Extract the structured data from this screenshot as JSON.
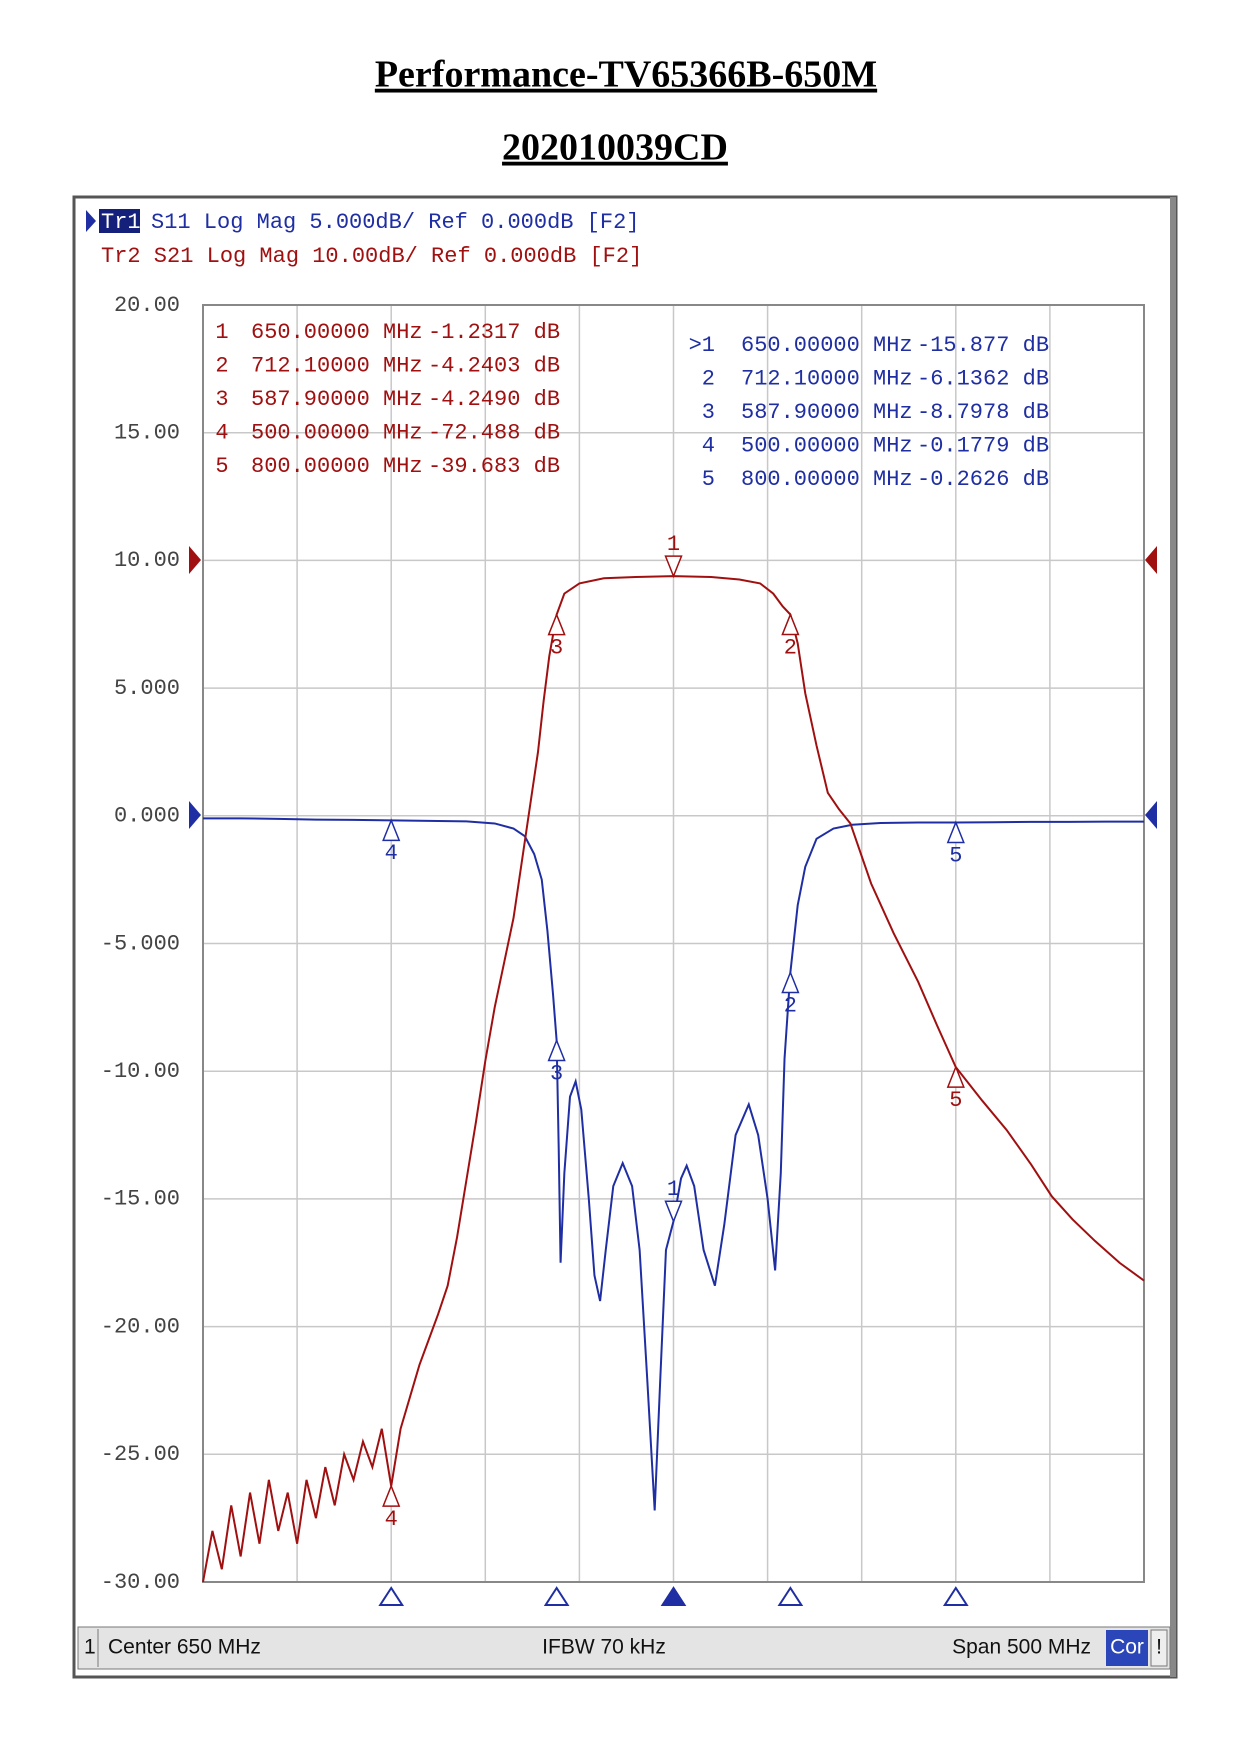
{
  "title": "Performance-TV65366B-650M",
  "subtitle": "202010039CD",
  "chart_data": {
    "type": "line",
    "tr1_label": "Tr1",
    "tr1_text": "S11 Log Mag 5.000dB/ Ref 0.000dB [F2]",
    "tr2_text": "Tr2 S21 Log Mag 10.00dB/ Ref 0.000dB [F2]",
    "xlim": [
      400,
      900
    ],
    "ylim": [
      -30,
      20
    ],
    "y2lim": [
      -80,
      20
    ],
    "grid": true,
    "yticks": [
      {
        "value": 20,
        "label": "20.00"
      },
      {
        "value": 15,
        "label": "15.00"
      },
      {
        "value": 10,
        "label": "10.00"
      },
      {
        "value": 5,
        "label": "5.000"
      },
      {
        "value": 0,
        "label": "0.000"
      },
      {
        "value": -5,
        "label": "-5.000"
      },
      {
        "value": -10,
        "label": "-10.00"
      },
      {
        "value": -15,
        "label": "-15.00"
      },
      {
        "value": -20,
        "label": "-20.00"
      },
      {
        "value": -25,
        "label": "-25.00"
      },
      {
        "value": -30,
        "label": "-30.00"
      }
    ],
    "series": [
      {
        "color": "#1f2fa3",
        "x": [
          400,
          420,
          440,
          460,
          480,
          500,
          520,
          540,
          555,
          565,
          571,
          576,
          580,
          583,
          586,
          587.9,
          589,
          590,
          592,
          595,
          598,
          601,
          605,
          608,
          611,
          614,
          618,
          623,
          628,
          632,
          636,
          640,
          643,
          646,
          650,
          654,
          657,
          661,
          666,
          672,
          677,
          683,
          690,
          695,
          700,
          704,
          707,
          709,
          712.1,
          716,
          720,
          726,
          735,
          745,
          760,
          780,
          800,
          820,
          840,
          860,
          880,
          900
        ],
        "values": [
          -0.1,
          -0.1,
          -0.12,
          -0.15,
          -0.16,
          -0.18,
          -0.2,
          -0.22,
          -0.3,
          -0.5,
          -0.8,
          -1.5,
          -2.5,
          -4.5,
          -7,
          -8.8,
          -13,
          -17.5,
          -14,
          -11,
          -10.4,
          -11.5,
          -15,
          -18,
          -19,
          -17,
          -14.5,
          -13.6,
          -14.5,
          -17,
          -22,
          -27.2,
          -22,
          -17,
          -15.877,
          -14.2,
          -13.7,
          -14.5,
          -17,
          -18.4,
          -16,
          -12.5,
          -11.3,
          -12.5,
          -15,
          -17.8,
          -14,
          -9.5,
          -6.1362,
          -3.5,
          -2,
          -0.9,
          -0.5,
          -0.35,
          -0.28,
          -0.26,
          -0.2626,
          -0.25,
          -0.24,
          -0.24,
          -0.23,
          -0.23
        ],
        "markers": [
          {
            "id": "1",
            "list_id": ">1",
            "freq": 650,
            "freq_label": "650.00000 MHz",
            "value": -15.877,
            "value_label": "-15.877 dB",
            "active": true
          },
          {
            "id": "2",
            "list_id": "2",
            "freq": 712.1,
            "freq_label": "712.10000 MHz",
            "value": -6.1362,
            "value_label": "-6.1362 dB"
          },
          {
            "id": "3",
            "list_id": "3",
            "freq": 587.9,
            "freq_label": "587.90000 MHz",
            "value": -8.7978,
            "value_label": "-8.7978 dB"
          },
          {
            "id": "4",
            "list_id": "4",
            "freq": 500,
            "freq_label": "500.00000 MHz",
            "value": -0.1779,
            "value_label": "-0.1779 dB"
          },
          {
            "id": "5",
            "list_id": "5",
            "freq": 800,
            "freq_label": "800.00000 MHz",
            "value": -0.2626,
            "value_label": "-0.2626 dB"
          }
        ]
      },
      {
        "color": "#a01010",
        "axis": "y2",
        "x": [
          400,
          405,
          410,
          415,
          420,
          425,
          430,
          435,
          440,
          445,
          450,
          455,
          460,
          465,
          470,
          475,
          480,
          485,
          490,
          495,
          500,
          505,
          510,
          515,
          520,
          525,
          530,
          535,
          540,
          545,
          550,
          555,
          560,
          565,
          570,
          575,
          578,
          581,
          584,
          587.9,
          592,
          600,
          613,
          630,
          650,
          670,
          685,
          696,
          703,
          708,
          712.1,
          716,
          720,
          726,
          732,
          738,
          744,
          755,
          767,
          780,
          790,
          800,
          814,
          827,
          840,
          851,
          862,
          874,
          887,
          900
        ],
        "values": [
          -80,
          -76,
          -79,
          -74,
          -78,
          -73,
          -77,
          -72,
          -76,
          -73,
          -77,
          -72,
          -75,
          -71,
          -74,
          -70,
          -72,
          -69,
          -71,
          -68,
          -72.488,
          -68,
          -65.5,
          -63,
          -61,
          -59,
          -56.8,
          -53,
          -48.5,
          -44,
          -39.2,
          -35,
          -31.5,
          -28,
          -23,
          -18,
          -15,
          -11,
          -7.5,
          -4.249,
          -2.6,
          -1.8,
          -1.4,
          -1.3,
          -1.2317,
          -1.3,
          -1.5,
          -1.8,
          -2.6,
          -3.6,
          -4.2403,
          -6.5,
          -10.4,
          -14.5,
          -18.2,
          -19.5,
          -20.6,
          -25.3,
          -29.2,
          -33,
          -36.4,
          -39.683,
          -42.3,
          -44.6,
          -47.3,
          -49.8,
          -51.6,
          -53.3,
          -55,
          -56.4
        ],
        "markers": [
          {
            "id": "1",
            "list_id": "1",
            "freq": 650,
            "freq_label": "650.00000 MHz",
            "value": -1.2317,
            "value_label": "-1.2317 dB",
            "active": true
          },
          {
            "id": "2",
            "list_id": "2",
            "freq": 712.1,
            "freq_label": "712.10000 MHz",
            "value": -4.2403,
            "value_label": "-4.2403 dB"
          },
          {
            "id": "3",
            "list_id": "3",
            "freq": 587.9,
            "freq_label": "587.90000 MHz",
            "value": -4.249,
            "value_label": "-4.2490 dB"
          },
          {
            "id": "4",
            "list_id": "4",
            "freq": 500,
            "freq_label": "500.00000 MHz",
            "value": -72.488,
            "value_label": "-72.488 dB"
          },
          {
            "id": "5",
            "list_id": "5",
            "freq": 800,
            "freq_label": "800.00000 MHz",
            "value": -39.683,
            "value_label": "-39.683 dB"
          }
        ]
      }
    ],
    "footer": {
      "channel": "1",
      "center": "Center 650 MHz",
      "ifbw": "IFBW 70 kHz",
      "span": "Span 500 MHz",
      "cor": "Cor",
      "status": "!"
    }
  }
}
